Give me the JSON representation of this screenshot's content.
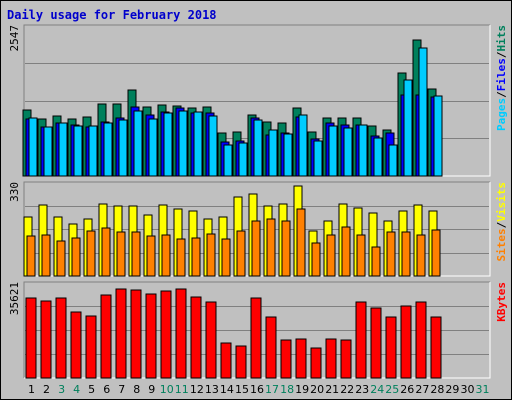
{
  "title": "Daily usage for February 2018",
  "colors": {
    "background": "#c0c0c0",
    "title": "#0000cc",
    "hits": "#00805c",
    "files": "#0000ff",
    "pages": "#00ccff",
    "visits": "#ffff00",
    "sites": "#ff8000",
    "kbytes": "#ff0000",
    "weekday_label": "#000000",
    "weekend_label": "#00805c"
  },
  "chart_data": [
    {
      "type": "bar",
      "panel": "hits-files-pages",
      "y_max_label": "2547",
      "ylim": [
        0,
        2547
      ],
      "legend": [
        "Pages",
        "/",
        "Files",
        "/",
        "Hits"
      ],
      "categories": [
        "1",
        "2",
        "3",
        "4",
        "5",
        "6",
        "7",
        "8",
        "9",
        "10",
        "11",
        "12",
        "13",
        "14",
        "15",
        "16",
        "17",
        "18",
        "19",
        "20",
        "21",
        "22",
        "23",
        "24",
        "25",
        "26",
        "27",
        "28",
        "29",
        "30",
        "31"
      ],
      "series": [
        {
          "name": "Hits",
          "values": [
            1135,
            990,
            1035,
            990,
            1030,
            1240,
            1255,
            1485,
            1200,
            1225,
            1220,
            1185,
            1200,
            745,
            760,
            1060,
            935,
            915,
            1175,
            755,
            1010,
            1000,
            1005,
            860,
            800,
            1785,
            2365,
            1505,
            0,
            0,
            0
          ]
        },
        {
          "name": "Files",
          "values": [
            990,
            855,
            925,
            880,
            855,
            935,
            1005,
            1200,
            1060,
            1105,
            1170,
            1100,
            1085,
            595,
            600,
            1010,
            705,
            750,
            1030,
            640,
            920,
            890,
            880,
            690,
            740,
            1410,
            1405,
            1370,
            0,
            0,
            0
          ]
        },
        {
          "name": "Pages",
          "values": [
            1000,
            850,
            910,
            860,
            870,
            910,
            975,
            1120,
            985,
            1090,
            1120,
            1110,
            1035,
            545,
            575,
            965,
            795,
            725,
            1055,
            610,
            870,
            840,
            890,
            650,
            530,
            1660,
            2220,
            1380,
            0,
            0,
            0
          ]
        }
      ]
    },
    {
      "type": "bar",
      "panel": "visits-sites",
      "y_max_label": "330",
      "ylim": [
        0,
        330
      ],
      "legend": [
        "Sites",
        "/",
        "Visits"
      ],
      "categories": [
        "1",
        "2",
        "3",
        "4",
        "5",
        "6",
        "7",
        "8",
        "9",
        "10",
        "11",
        "12",
        "13",
        "14",
        "15",
        "16",
        "17",
        "18",
        "19",
        "20",
        "21",
        "22",
        "23",
        "24",
        "25",
        "26",
        "27",
        "28",
        "29",
        "30",
        "31"
      ],
      "series": [
        {
          "name": "Visits",
          "values": [
            215,
            260,
            215,
            190,
            210,
            265,
            255,
            255,
            225,
            260,
            245,
            240,
            210,
            215,
            290,
            300,
            255,
            265,
            330,
            165,
            200,
            265,
            250,
            230,
            200,
            240,
            260,
            240,
            0,
            0,
            0
          ]
        },
        {
          "name": "Sites",
          "values": [
            145,
            150,
            130,
            140,
            165,
            175,
            160,
            160,
            145,
            150,
            135,
            140,
            155,
            135,
            165,
            200,
            210,
            200,
            245,
            120,
            150,
            180,
            150,
            105,
            160,
            160,
            150,
            170,
            0,
            0,
            0
          ]
        }
      ]
    },
    {
      "type": "bar",
      "panel": "kbytes",
      "y_max_label": "35621",
      "ylim": [
        0,
        35621
      ],
      "legend": [
        "KBytes"
      ],
      "categories": [
        "1",
        "2",
        "3",
        "4",
        "5",
        "6",
        "7",
        "8",
        "9",
        "10",
        "11",
        "12",
        "13",
        "14",
        "15",
        "16",
        "17",
        "18",
        "19",
        "20",
        "21",
        "22",
        "23",
        "24",
        "25",
        "26",
        "27",
        "28",
        "29",
        "30",
        "31"
      ],
      "series": [
        {
          "name": "KBytes",
          "values": [
            30930,
            29880,
            30930,
            25690,
            24120,
            31980,
            34600,
            34080,
            32500,
            33550,
            34600,
            31450,
            29360,
            13630,
            12580,
            30930,
            23590,
            14680,
            15200,
            11530,
            15200,
            14680,
            29360,
            27260,
            23590,
            27780,
            29360,
            23590,
            0,
            0,
            0
          ]
        }
      ]
    }
  ],
  "day_labels": [
    {
      "text": "1",
      "weekend": false
    },
    {
      "text": "2",
      "weekend": false
    },
    {
      "text": "3",
      "weekend": true
    },
    {
      "text": "4",
      "weekend": true
    },
    {
      "text": "5",
      "weekend": false
    },
    {
      "text": "6",
      "weekend": false
    },
    {
      "text": "7",
      "weekend": false
    },
    {
      "text": "8",
      "weekend": false
    },
    {
      "text": "9",
      "weekend": false
    },
    {
      "text": "10",
      "weekend": true
    },
    {
      "text": "11",
      "weekend": true
    },
    {
      "text": "12",
      "weekend": false
    },
    {
      "text": "13",
      "weekend": false
    },
    {
      "text": "14",
      "weekend": false
    },
    {
      "text": "15",
      "weekend": false
    },
    {
      "text": "16",
      "weekend": false
    },
    {
      "text": "17",
      "weekend": true
    },
    {
      "text": "18",
      "weekend": true
    },
    {
      "text": "19",
      "weekend": false
    },
    {
      "text": "20",
      "weekend": false
    },
    {
      "text": "21",
      "weekend": false
    },
    {
      "text": "22",
      "weekend": false
    },
    {
      "text": "23",
      "weekend": false
    },
    {
      "text": "24",
      "weekend": true
    },
    {
      "text": "25",
      "weekend": true
    },
    {
      "text": "26",
      "weekend": false
    },
    {
      "text": "27",
      "weekend": false
    },
    {
      "text": "28",
      "weekend": false
    },
    {
      "text": "29",
      "weekend": false
    },
    {
      "text": "30",
      "weekend": false
    },
    {
      "text": "31",
      "weekend": true
    }
  ]
}
